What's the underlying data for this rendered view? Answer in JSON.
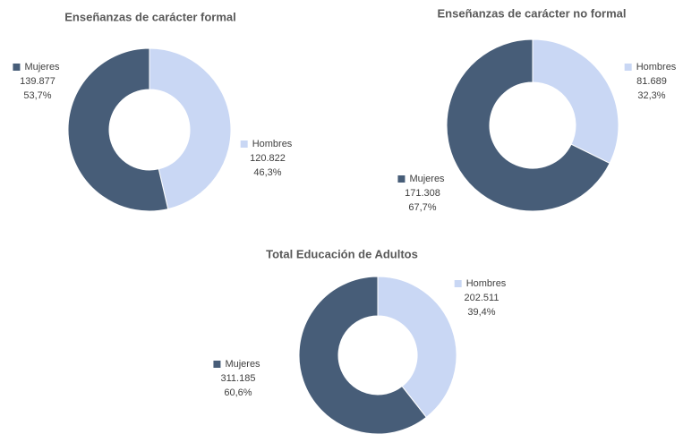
{
  "chart_data": [
    {
      "type": "pie",
      "title": "Enseñanzas de carácter formal",
      "categories": [
        "Hombres",
        "Mujeres"
      ],
      "values": [
        120822,
        139877
      ],
      "value_labels": [
        "120.822",
        "139.877"
      ],
      "percentages": [
        46.3,
        53.7
      ],
      "percentage_labels": [
        "46,3%",
        "53,7%"
      ],
      "colors": [
        "#c9d7f4",
        "#475d78"
      ]
    },
    {
      "type": "pie",
      "title": "Enseñanzas de carácter no formal",
      "categories": [
        "Hombres",
        "Mujeres"
      ],
      "values": [
        81689,
        171308
      ],
      "value_labels": [
        "81.689",
        "171.308"
      ],
      "percentages": [
        32.3,
        67.7
      ],
      "percentage_labels": [
        "32,3%",
        "67,7%"
      ],
      "colors": [
        "#c9d7f4",
        "#475d78"
      ]
    },
    {
      "type": "pie",
      "title": "Total Educación de Adultos",
      "categories": [
        "Hombres",
        "Mujeres"
      ],
      "values": [
        202511,
        311185
      ],
      "value_labels": [
        "202.511",
        "311.185"
      ],
      "percentages": [
        39.4,
        60.6
      ],
      "percentage_labels": [
        "39,4%",
        "60,6%"
      ],
      "colors": [
        "#c9d7f4",
        "#475d78"
      ]
    }
  ]
}
